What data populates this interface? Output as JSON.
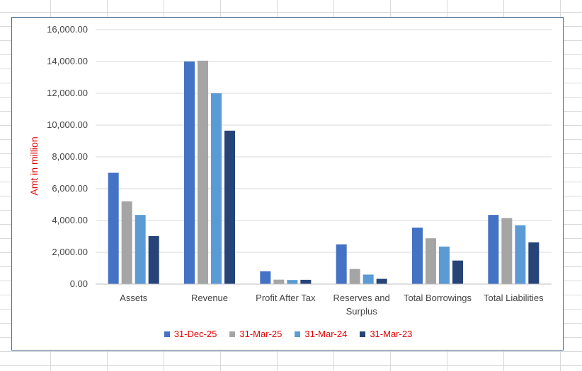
{
  "chart_data": {
    "type": "bar",
    "title": "",
    "xlabel": "",
    "ylabel": "Amt in million",
    "ylim": [
      0,
      16000
    ],
    "yticks": [
      "0.00",
      "2,000.00",
      "4,000.00",
      "6,000.00",
      "8,000.00",
      "10,000.00",
      "12,000.00",
      "14,000.00",
      "16,000.00"
    ],
    "ytick_values": [
      0,
      2000,
      4000,
      6000,
      8000,
      10000,
      12000,
      14000,
      16000
    ],
    "grid": true,
    "legend_position": "bottom",
    "categories": [
      [
        "Assets"
      ],
      [
        "Revenue"
      ],
      [
        "Profit After Tax"
      ],
      [
        "Reserves and",
        "Surplus"
      ],
      [
        "Total Borrowings"
      ],
      [
        "Total Liabilities"
      ]
    ],
    "series": [
      {
        "name": "31-Dec-25",
        "color": "#4472c4",
        "values": [
          7000,
          14000,
          800,
          2500,
          3550,
          4350
        ]
      },
      {
        "name": "31-Mar-25",
        "color": "#a5a5a5",
        "values": [
          5200,
          14050,
          280,
          950,
          2880,
          4150
        ]
      },
      {
        "name": "31-Mar-24",
        "color": "#5b9bd5",
        "values": [
          4350,
          12000,
          260,
          600,
          2360,
          3700
        ]
      },
      {
        "name": "31-Mar-23",
        "color": "#264478",
        "values": [
          3020,
          9650,
          270,
          330,
          1480,
          2620
        ]
      }
    ]
  }
}
